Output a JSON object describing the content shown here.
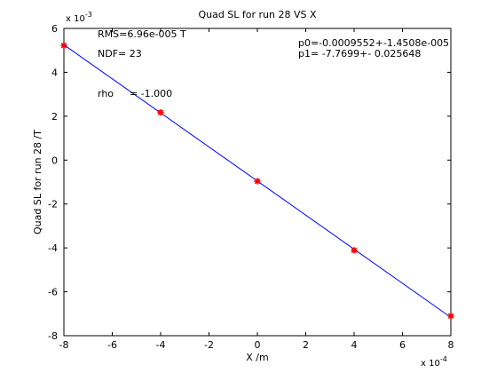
{
  "chart_data": {
    "type": "scatter",
    "title": "Quad SL for run 28 VS X",
    "xlabel": "X /m",
    "ylabel": "Quad SL for run 28 /T",
    "xlim": [
      -8,
      8
    ],
    "ylim": [
      -8,
      6
    ],
    "x_multiplier": "x 10",
    "x_multiplier_exp": "-4",
    "y_multiplier": "x 10",
    "y_multiplier_exp": "-3",
    "x_ticks": [
      -8,
      -6,
      -4,
      -2,
      0,
      2,
      4,
      6,
      8
    ],
    "y_ticks": [
      -8,
      -6,
      -4,
      -2,
      0,
      2,
      4,
      6
    ],
    "grid": false,
    "points": [
      {
        "x": -8,
        "y": 5.22
      },
      {
        "x": -4,
        "y": 2.17
      },
      {
        "x": 0,
        "y": -0.96
      },
      {
        "x": 4,
        "y": -4.11
      },
      {
        "x": 8,
        "y": -7.1
      }
    ],
    "fit": {
      "x": [
        -8,
        8
      ],
      "y": [
        5.255,
        -7.165
      ]
    },
    "point_color": "#ff0000",
    "line_color": "#0000ff",
    "annotations": {
      "rms": "RMS=6.96e-005 T",
      "ndf": "NDF=   23",
      "rho_label": "rho",
      "rho_value": "= -1.000",
      "p0": "p0=-0.0009552+-1.4508e-005",
      "p1": "p1=  -7.7699+- 0.025648"
    }
  }
}
